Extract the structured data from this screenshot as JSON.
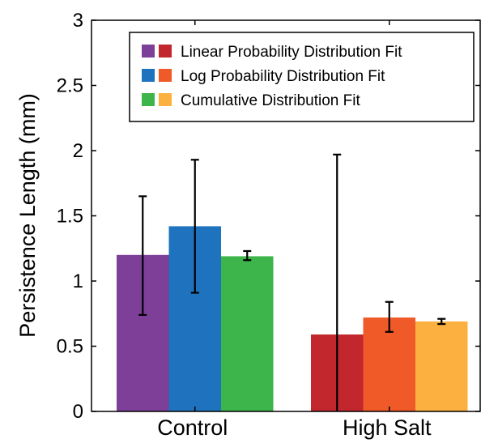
{
  "chart_data": {
    "type": "bar",
    "ylabel": "Persistence Length (mm)",
    "xlabel": "",
    "ylim": [
      0,
      3
    ],
    "yticks": [
      {
        "value": 0,
        "label": "0"
      },
      {
        "value": 0.5,
        "label": "0.5"
      },
      {
        "value": 1,
        "label": "1"
      },
      {
        "value": 1.5,
        "label": "1.5"
      },
      {
        "value": 2,
        "label": "2"
      },
      {
        "value": 2.5,
        "label": "2.5"
      },
      {
        "value": 3,
        "label": "3"
      }
    ],
    "categories": [
      "Control",
      "High Salt"
    ],
    "series": [
      {
        "name": "Linear Probability Distribution Fit",
        "values": [
          1.2,
          0.59
        ],
        "error": [
          [
            0.74,
            1.65
          ],
          [
            0,
            1.97
          ]
        ],
        "colors": [
          "#7d3f98",
          "#c1272d"
        ]
      },
      {
        "name": "Log Probability Distribution Fit",
        "values": [
          1.42,
          0.72
        ],
        "error": [
          [
            0.91,
            1.93
          ],
          [
            0.61,
            0.84
          ]
        ],
        "colors": [
          "#1f73be",
          "#f05a28"
        ]
      },
      {
        "name": "Cumulative Distribution Fit",
        "values": [
          1.19,
          0.69
        ],
        "error": [
          [
            1.16,
            1.23
          ],
          [
            0.67,
            0.71
          ]
        ],
        "colors": [
          "#3db54a",
          "#fbb040"
        ]
      }
    ],
    "legend_position": "top-right",
    "grid": false
  }
}
